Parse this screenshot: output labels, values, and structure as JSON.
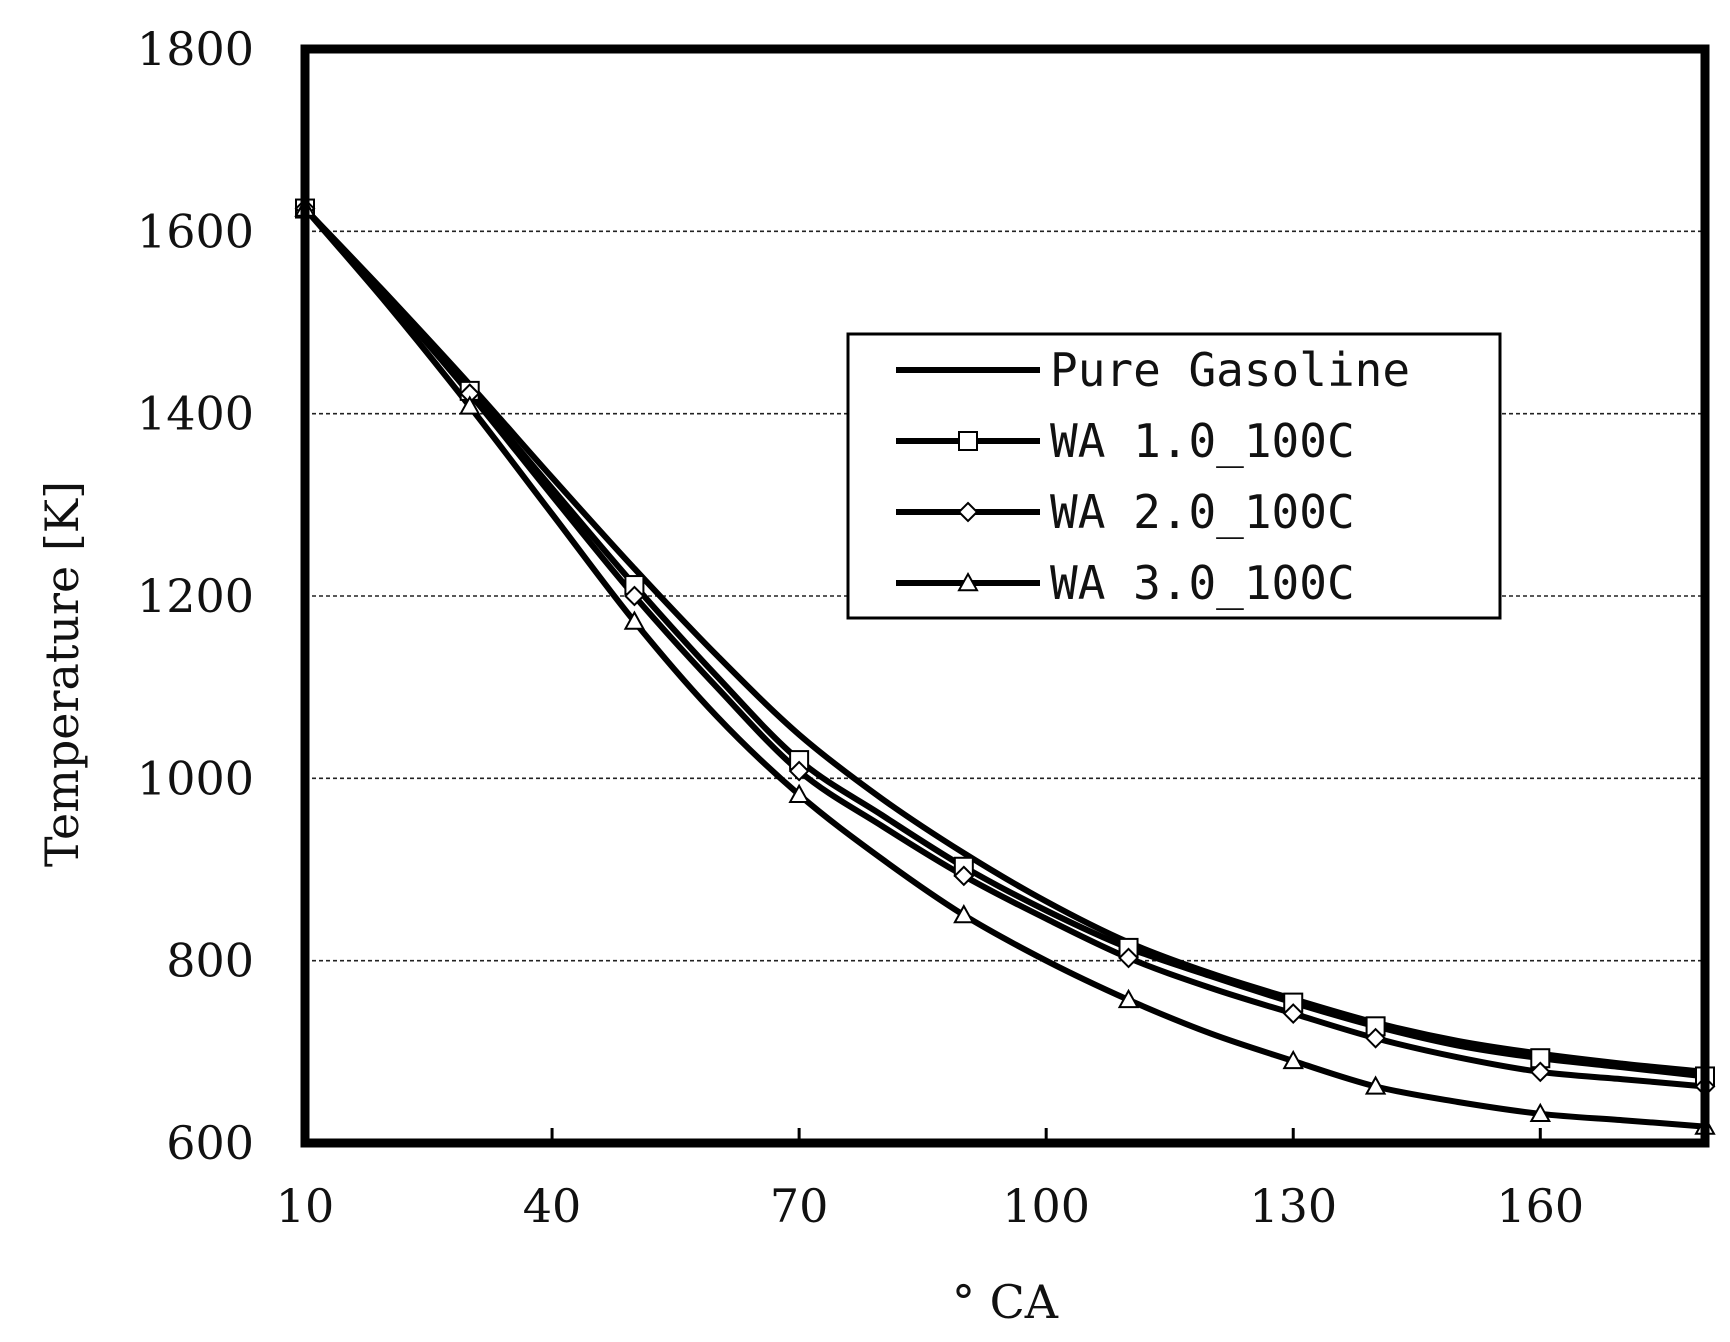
{
  "chart_data": {
    "type": "line",
    "title": "",
    "xlabel": "° CA",
    "ylabel": "Temperature [K]",
    "xlim": [
      10,
      180
    ],
    "ylim": [
      600,
      1800
    ],
    "xticks": [
      10,
      40,
      70,
      100,
      130,
      160
    ],
    "xtick_labels": [
      "10",
      "40",
      "70",
      "100",
      "130",
      "160"
    ],
    "yticks": [
      600,
      800,
      1000,
      1200,
      1400,
      1600,
      1800
    ],
    "ytick_labels": [
      "600",
      "800",
      "1000",
      "1200",
      "1400",
      "1600",
      "1800"
    ],
    "grid": "horizontal dashed",
    "legend_position": "upper-right-center",
    "x": [
      10,
      20,
      30,
      40,
      50,
      60,
      70,
      80,
      90,
      100,
      110,
      120,
      130,
      140,
      150,
      160,
      170,
      180
    ],
    "series": [
      {
        "name": "Pure Gasoline",
        "marker": "none",
        "values": [
          1625,
          1530,
          1432,
          1330,
          1230,
          1135,
          1048,
          978,
          918,
          865,
          820,
          786,
          758,
          732,
          712,
          698,
          687,
          678
        ]
      },
      {
        "name": "WA 1.0_100C",
        "marker": "square",
        "values": [
          1625,
          1527,
          1425,
          1318,
          1212,
          1112,
          1020,
          960,
          903,
          855,
          814,
          783,
          754,
          728,
          707,
          693,
          683,
          673
        ]
      },
      {
        "name": "WA 2.0_100C",
        "marker": "diamond",
        "values": [
          1625,
          1527,
          1422,
          1310,
          1200,
          1100,
          1008,
          948,
          893,
          846,
          803,
          770,
          742,
          715,
          694,
          678,
          670,
          662
        ]
      },
      {
        "name": "WA 3.0_100C",
        "marker": "triangle",
        "values": [
          1625,
          1520,
          1408,
          1290,
          1172,
          1068,
          982,
          912,
          850,
          800,
          757,
          720,
          690,
          662,
          645,
          632,
          625,
          618
        ]
      }
    ],
    "marker_x": {
      "WA 1.0_100C": [
        10,
        30,
        50,
        70,
        90,
        110,
        130,
        140,
        160,
        180
      ],
      "WA 2.0_100C": [
        10,
        30,
        50,
        70,
        90,
        110,
        130,
        140,
        160,
        180
      ],
      "WA 3.0_100C": [
        10,
        30,
        50,
        70,
        90,
        110,
        130,
        140,
        160,
        180
      ]
    }
  }
}
